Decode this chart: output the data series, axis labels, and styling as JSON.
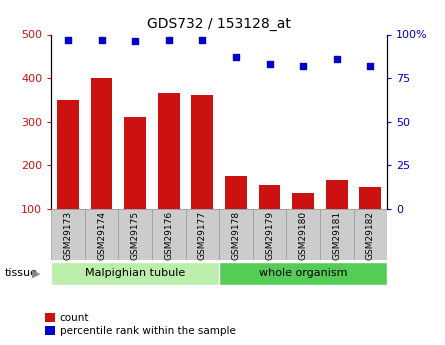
{
  "title": "GDS732 / 153128_at",
  "samples": [
    "GSM29173",
    "GSM29174",
    "GSM29175",
    "GSM29176",
    "GSM29177",
    "GSM29178",
    "GSM29179",
    "GSM29180",
    "GSM29181",
    "GSM29182"
  ],
  "counts": [
    350,
    400,
    310,
    365,
    360,
    175,
    155,
    135,
    165,
    150
  ],
  "percentiles": [
    97,
    97,
    96,
    97,
    97,
    87,
    83,
    82,
    86,
    82
  ],
  "groups": [
    {
      "label": "Malpighian tubule",
      "start": 0,
      "end": 5,
      "color": "#bbeeaa"
    },
    {
      "label": "whole organism",
      "start": 5,
      "end": 10,
      "color": "#55cc55"
    }
  ],
  "tissue_label": "tissue",
  "bar_color": "#cc1111",
  "dot_color": "#0000cc",
  "ylim_left": [
    100,
    500
  ],
  "ylim_right": [
    0,
    100
  ],
  "yticks_left": [
    100,
    200,
    300,
    400,
    500
  ],
  "yticks_right": [
    0,
    25,
    50,
    75,
    100
  ],
  "yticklabels_right": [
    "0",
    "25",
    "50",
    "75",
    "100%"
  ],
  "grid_values": [
    200,
    300,
    400
  ],
  "legend_count_label": "count",
  "legend_pct_label": "percentile rank within the sample",
  "bg_xtick": "#cccccc",
  "xtick_cell_border": "#999999"
}
